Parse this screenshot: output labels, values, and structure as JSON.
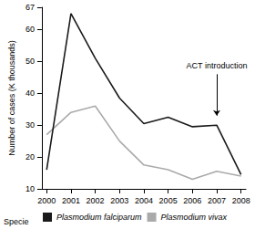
{
  "chart_data": {
    "type": "line",
    "y_label": "Number of cases (K thousands)",
    "x": [
      2000,
      2001,
      2002,
      2003,
      2004,
      2005,
      2006,
      2007,
      2008
    ],
    "series": [
      {
        "name": "Plasmodium falciparum",
        "color": "#1a1a1a",
        "values": [
          16,
          65,
          51,
          38.5,
          30.5,
          32.5,
          29.5,
          30,
          14.5
        ]
      },
      {
        "name": "Plasmodium vivax",
        "color": "#aaaaaa",
        "values": [
          27,
          34,
          36,
          25,
          17.5,
          16,
          13,
          15.5,
          14
        ]
      }
    ],
    "legend_title": "Specie",
    "annotations": [
      {
        "text": "ACT introduction",
        "x": 2007,
        "y": 33,
        "text_y": 46
      }
    ],
    "xlim": [
      1999.8,
      2008.2
    ],
    "xticks": [
      2000,
      2001,
      2002,
      2003,
      2004,
      2005,
      2006,
      2007,
      2008
    ],
    "ylim": [
      10,
      67
    ],
    "yticks": [
      10,
      20,
      30,
      40,
      50,
      60
    ],
    "grid": false,
    "legend": "bottom"
  }
}
